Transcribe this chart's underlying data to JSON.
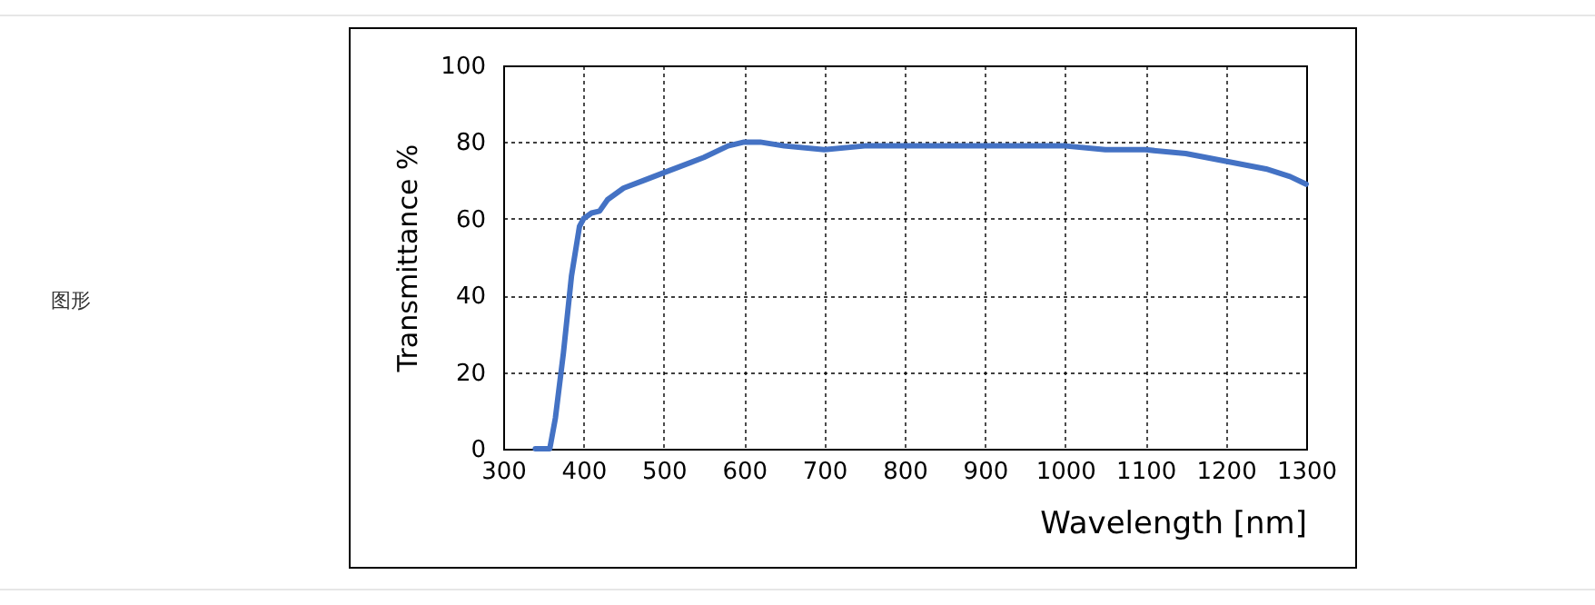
{
  "chart_data": {
    "type": "line",
    "xlabel": "Wavelength [nm]",
    "ylabel": "Transmittance %",
    "annotations": [
      "图形"
    ],
    "x": [
      340,
      358,
      365,
      375,
      385,
      395,
      400,
      410,
      420,
      430,
      450,
      475,
      500,
      550,
      580,
      600,
      620,
      650,
      700,
      750,
      800,
      900,
      1000,
      1050,
      1100,
      1150,
      1200,
      1250,
      1280,
      1300
    ],
    "series": [
      {
        "color": "#4472c4",
        "values": [
          0,
          0,
          8,
          25,
          45,
          58,
          60,
          61.5,
          62,
          65,
          68,
          70,
          72,
          76,
          79,
          80,
          80,
          79,
          78,
          79,
          79,
          79,
          79,
          78,
          78,
          77,
          75,
          73,
          71,
          69
        ]
      }
    ],
    "xlim": [
      300,
      1300
    ],
    "xticks": [
      300,
      400,
      500,
      600,
      700,
      800,
      900,
      1000,
      1100,
      1200,
      1300
    ],
    "ylim": [
      0,
      100
    ],
    "yticks": [
      0,
      20,
      40,
      60,
      80,
      100
    ],
    "grid": true,
    "line_style": "solid",
    "marker": "none"
  }
}
